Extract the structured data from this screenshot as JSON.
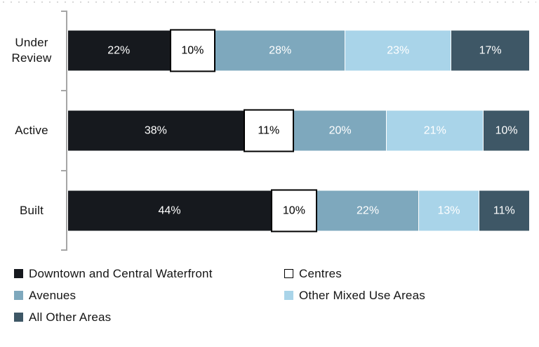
{
  "figure": {
    "background": "#ffffff",
    "axis_color": "#a6a6a6",
    "text_color": "#141414"
  },
  "chart_data": {
    "type": "bar",
    "orientation": "horizontal",
    "stacked": true,
    "title": "",
    "xlabel": "",
    "ylabel": "",
    "xlim": [
      0,
      100
    ],
    "grid": false,
    "legend_position": "bottom",
    "value_suffix": "%",
    "categories": [
      "Under Review",
      "Active",
      "Built"
    ],
    "series": [
      {
        "name": "Downtown and Central Waterfront",
        "color": "#16191e",
        "label_color": "#ffffff",
        "values": [
          22,
          38,
          44
        ]
      },
      {
        "name": "Centres",
        "color": "#ffffff",
        "border_color": "#000000",
        "label_color": "#000000",
        "values": [
          10,
          11,
          10
        ]
      },
      {
        "name": "Avenues",
        "color": "#7ea8bd",
        "label_color": "#ffffff",
        "values": [
          28,
          20,
          22
        ]
      },
      {
        "name": "Other Mixed Use Areas",
        "color": "#a9d4e9",
        "label_color": "#ffffff",
        "values": [
          23,
          21,
          13
        ]
      },
      {
        "name": "All Other Areas",
        "color": "#3e5766",
        "label_color": "#ffffff",
        "values": [
          17,
          10,
          11
        ]
      }
    ],
    "data_labels": [
      [
        "22%",
        "10%",
        "28%",
        "23%",
        "17%"
      ],
      [
        "38%",
        "11%",
        "20%",
        "21%",
        "10%"
      ],
      [
        "44%",
        "10%",
        "22%",
        "13%",
        "11%"
      ]
    ]
  }
}
